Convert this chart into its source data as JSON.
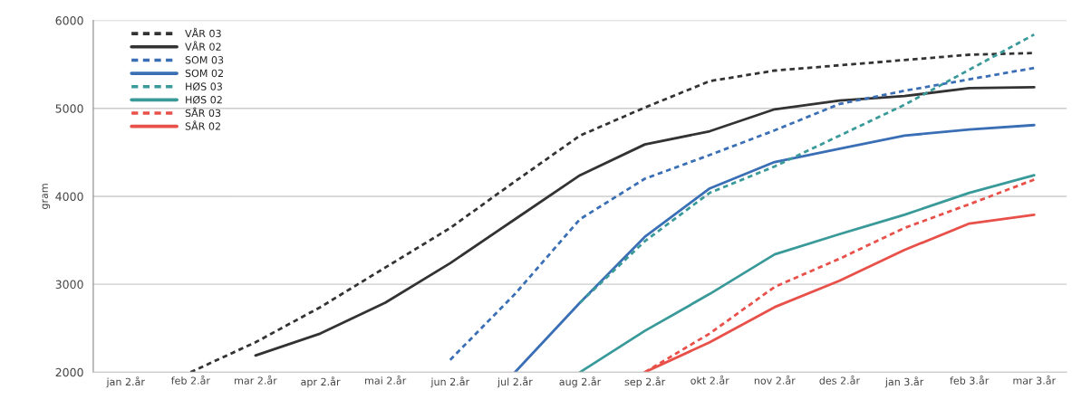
{
  "chart_data": {
    "type": "line",
    "ylabel": "gram",
    "categories": [
      "jan 2.år",
      "feb 2.år",
      "mar 2.år",
      "apr 2.år",
      "mai 2.år",
      "jun 2.år",
      "jul 2.år",
      "aug 2.år",
      "sep 2.år",
      "okt 2.år",
      "nov 2.år",
      "des 2.år",
      "jan 3.år",
      "feb 3.år",
      "mar 3.år"
    ],
    "ylim": [
      2000,
      6000
    ],
    "yticks": [
      2000,
      3000,
      4000,
      5000,
      6000
    ],
    "grid": "y",
    "legend": "top left",
    "marker": "none",
    "series": [
      {
        "name": "VÅR 03",
        "color": "#333333",
        "line_style": "dashed",
        "values": [
          null,
          2000,
          2340,
          2740,
          3190,
          3640,
          4170,
          4690,
          5010,
          5310,
          5430,
          5490,
          5550,
          5610,
          5630
        ]
      },
      {
        "name": "VÅR 02",
        "color": "#333333",
        "line_style": "solid",
        "values": [
          null,
          null,
          2190,
          2440,
          2790,
          3240,
          3740,
          4240,
          4590,
          4740,
          4990,
          5090,
          5140,
          5230,
          5240
        ]
      },
      {
        "name": "SOM 03",
        "color": "#3a6fb5",
        "line_style": "dashed",
        "values": [
          null,
          null,
          null,
          null,
          null,
          2140,
          2890,
          3740,
          4200,
          4470,
          4750,
          5050,
          5200,
          5330,
          5460
        ]
      },
      {
        "name": "SOM 02",
        "color": "#3a6fb5",
        "line_style": "solid",
        "values": [
          null,
          null,
          null,
          null,
          null,
          null,
          2000,
          2790,
          3540,
          4090,
          4390,
          4540,
          4690,
          4760,
          4810
        ]
      },
      {
        "name": "HØS 03",
        "color": "#3a9a9a",
        "line_style": "dashed",
        "values": [
          null,
          null,
          null,
          null,
          null,
          null,
          null,
          2790,
          3490,
          4040,
          4340,
          4690,
          5040,
          5440,
          5840
        ]
      },
      {
        "name": "HØS 02",
        "color": "#3a9a9a",
        "line_style": "solid",
        "values": [
          null,
          null,
          null,
          null,
          null,
          null,
          null,
          2000,
          2470,
          2890,
          3340,
          3570,
          3790,
          4040,
          4240
        ]
      },
      {
        "name": "SÅR 03",
        "color": "#e8504a",
        "line_style": "dashed",
        "values": [
          null,
          null,
          null,
          null,
          null,
          null,
          null,
          null,
          2000,
          2440,
          2970,
          3290,
          3640,
          3910,
          4190
        ]
      },
      {
        "name": "SÅR 02",
        "color": "#e8504a",
        "line_style": "solid",
        "values": [
          null,
          null,
          null,
          null,
          null,
          null,
          null,
          null,
          2000,
          2340,
          2740,
          3040,
          3390,
          3690,
          3790
        ]
      }
    ]
  }
}
